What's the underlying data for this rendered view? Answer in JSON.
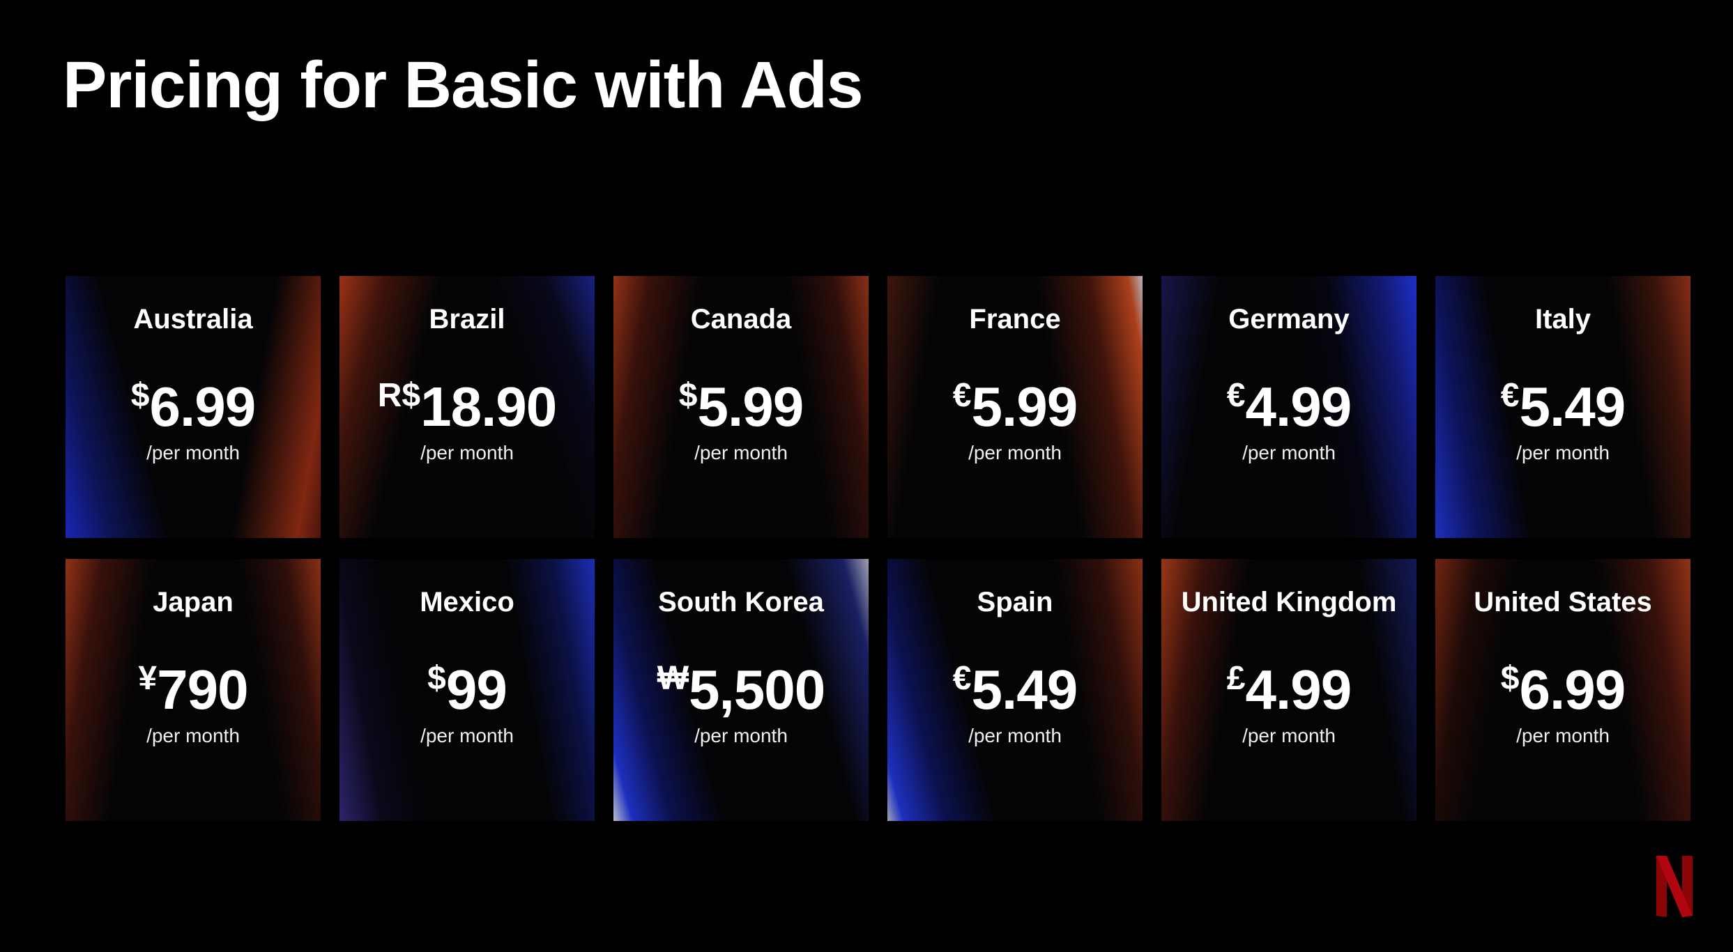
{
  "title": "Pricing for Basic with Ads",
  "per_month_label": "/per month",
  "countries": [
    {
      "name": "Australia",
      "symbol": "$",
      "amount": "6.99",
      "theme": "g-blue-left"
    },
    {
      "name": "Brazil",
      "symbol": "R$",
      "amount": "18.90",
      "theme": "g-red-left"
    },
    {
      "name": "Canada",
      "symbol": "$",
      "amount": "5.99",
      "theme": "g-red-both"
    },
    {
      "name": "France",
      "symbol": "€",
      "amount": "5.99",
      "theme": "g-red-right"
    },
    {
      "name": "Germany",
      "symbol": "€",
      "amount": "4.99",
      "theme": "g-blue-right"
    },
    {
      "name": "Italy",
      "symbol": "€",
      "amount": "5.49",
      "theme": "g-blue-italy"
    },
    {
      "name": "Japan",
      "symbol": "¥",
      "amount": "790",
      "theme": "g-red-both"
    },
    {
      "name": "Mexico",
      "symbol": "$",
      "amount": "99",
      "theme": "g-purple"
    },
    {
      "name": "South Korea",
      "symbol": "₩",
      "amount": "5,500",
      "theme": "g-korea"
    },
    {
      "name": "Spain",
      "symbol": "€",
      "amount": "5.49",
      "theme": "g-spain"
    },
    {
      "name": "United Kingdom",
      "symbol": "£",
      "amount": "4.99",
      "theme": "g-uk"
    },
    {
      "name": "United States",
      "symbol": "$",
      "amount": "6.99",
      "theme": "g-us"
    }
  ],
  "logo": {
    "icon": "netflix-n-logo-icon",
    "color": "#b1060f"
  }
}
